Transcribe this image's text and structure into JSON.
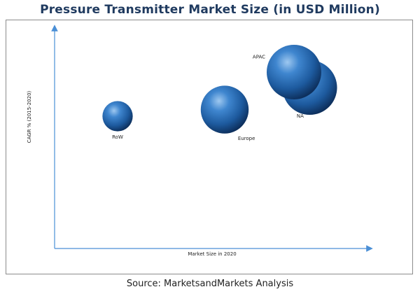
{
  "chart_data": {
    "type": "bubble",
    "title": "Pressure Transmitter Market Size (in USD Million)",
    "xlabel": "Market Size in 2020",
    "ylabel": "CAGR % (2015-2020)",
    "xlim": [
      0,
      100
    ],
    "ylim": [
      0,
      100
    ],
    "grid": false,
    "legend": "none",
    "bubble_color": "#1f5fa8",
    "points": [
      {
        "label": "RoW",
        "x": 20,
        "y": 60,
        "size": 4
      },
      {
        "label": "Europe",
        "x": 54,
        "y": 63,
        "size": 10
      },
      {
        "label": "NA",
        "x": 81,
        "y": 73,
        "size": 13
      },
      {
        "label": "APAC",
        "x": 76,
        "y": 80,
        "size": 13
      }
    ]
  },
  "source": "Source: MarketsandMarkets Analysis"
}
